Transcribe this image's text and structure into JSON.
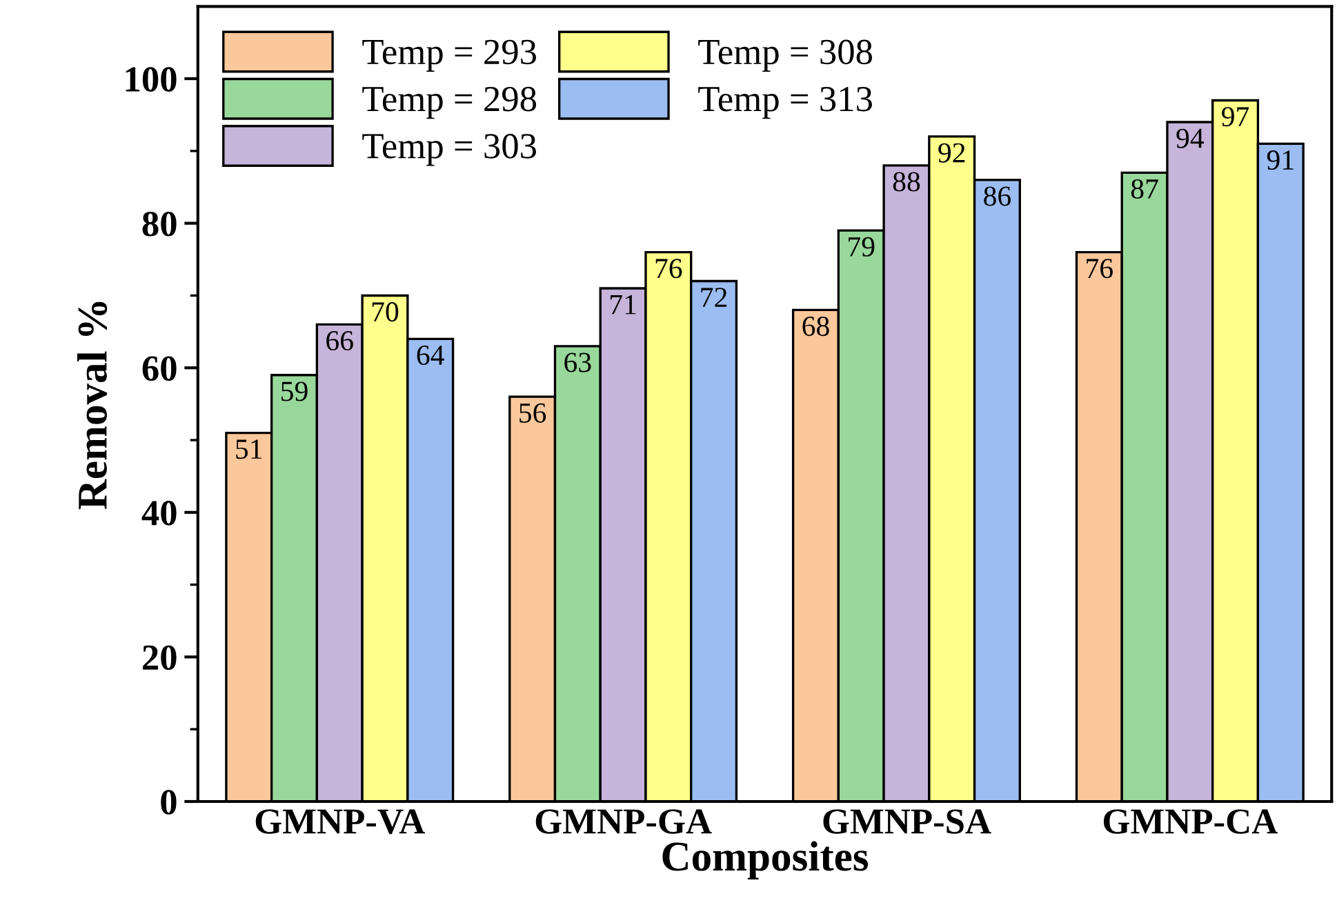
{
  "chart_data": {
    "type": "bar",
    "xlabel": "Composites",
    "ylabel": "Removal %",
    "categories": [
      "GMNP-VA",
      "GMNP-GA",
      "GMNP-SA",
      "GMNP-CA"
    ],
    "series": [
      {
        "name": "Temp = 293",
        "color": "#fbc89b",
        "values": [
          51,
          56,
          68,
          76
        ]
      },
      {
        "name": "Temp = 298",
        "color": "#99d89b",
        "values": [
          59,
          63,
          79,
          87
        ]
      },
      {
        "name": "Temp = 303",
        "color": "#c6b4da",
        "values": [
          66,
          71,
          88,
          94
        ]
      },
      {
        "name": "Temp = 308",
        "color": "#ffff8c",
        "values": [
          70,
          76,
          92,
          97
        ]
      },
      {
        "name": "Temp = 313",
        "color": "#9cbdf2",
        "values": [
          64,
          72,
          86,
          91
        ]
      }
    ],
    "ylim": [
      0,
      110
    ],
    "yticks": [
      0,
      20,
      40,
      60,
      80,
      100
    ],
    "data_labels": true,
    "legend": "top left",
    "grid": false
  }
}
